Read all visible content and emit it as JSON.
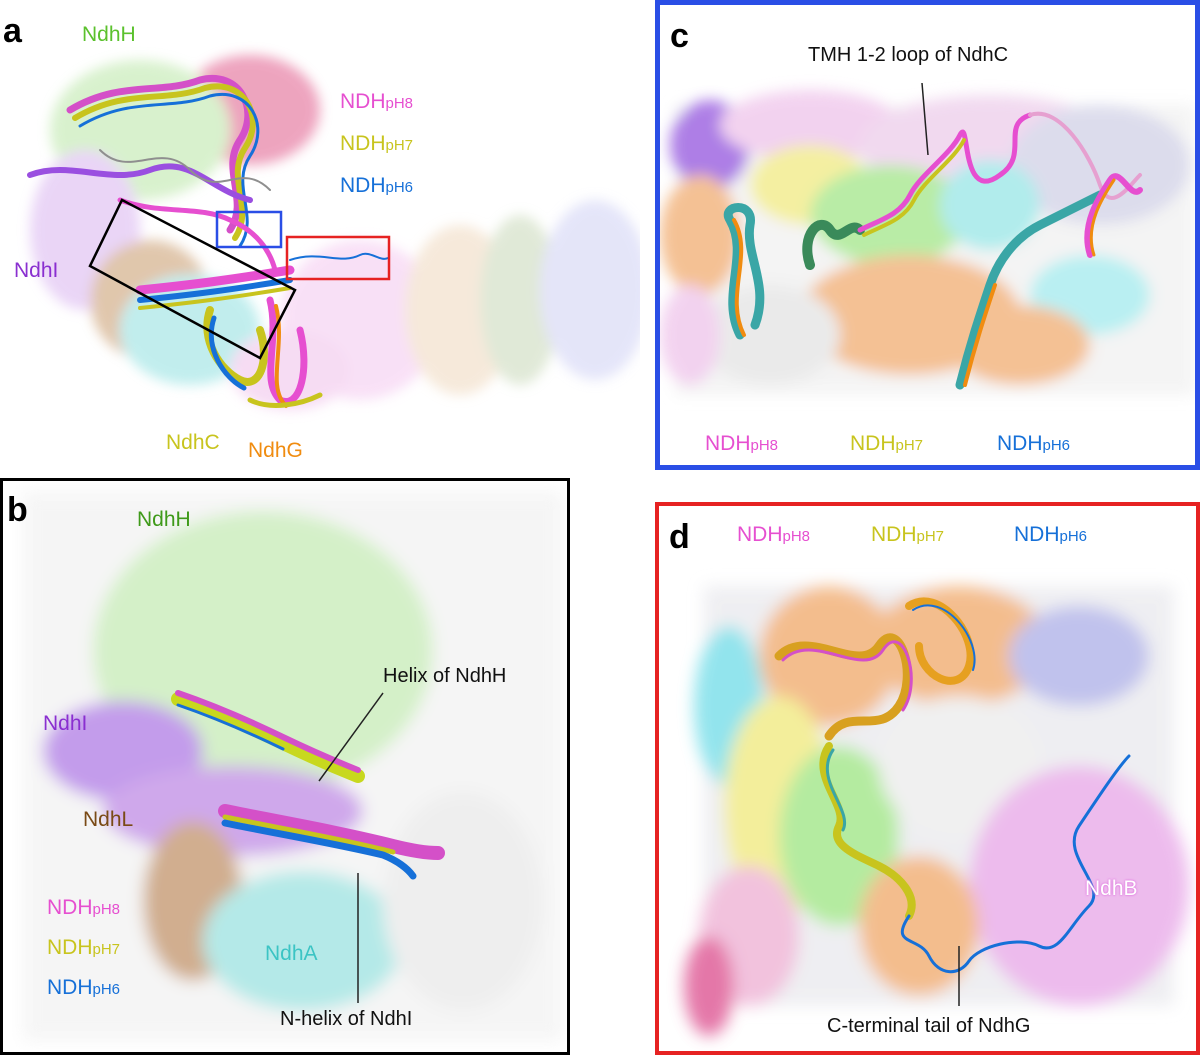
{
  "colors": {
    "ph8": "#e64fd0",
    "ph7": "#c8c41e",
    "ph6": "#1670d8",
    "ndhh": "#5bc12d",
    "ndhh_b": "#3f9a1a",
    "ndhi": "#8a2fd0",
    "ndhc": "#c8c41e",
    "ndhg": "#f08c10",
    "ndhl": "#7a4a16",
    "ndha": "#3cc4c4",
    "ndhb": "#e07be0",
    "frame_c": "#2a4ee6",
    "frame_d": "#e62222",
    "frame_b": "#000000"
  },
  "legend": {
    "ph8_main": "NDH",
    "ph8_sub": "pH8",
    "ph7_main": "NDH",
    "ph7_sub": "pH7",
    "ph6_main": "NDH",
    "ph6_sub": "pH6"
  },
  "panel_a": {
    "letter": "a",
    "ndhh": "NdhH",
    "ndhi": "NdhI",
    "ndhc": "NdhC",
    "ndhg": "NdhG"
  },
  "panel_b": {
    "letter": "b",
    "ndhh": "NdhH",
    "ndhi": "NdhI",
    "ndhl": "NdhL",
    "ndha": "NdhA",
    "helix_callout": "Helix of NdhH",
    "nhelix_callout": "N-helix of NdhI"
  },
  "panel_c": {
    "letter": "c",
    "loop_callout": "TMH 1-2 loop of NdhC"
  },
  "panel_d": {
    "letter": "d",
    "ndhb": "NdhB",
    "tail_callout": "C-terminal tail of NdhG"
  }
}
